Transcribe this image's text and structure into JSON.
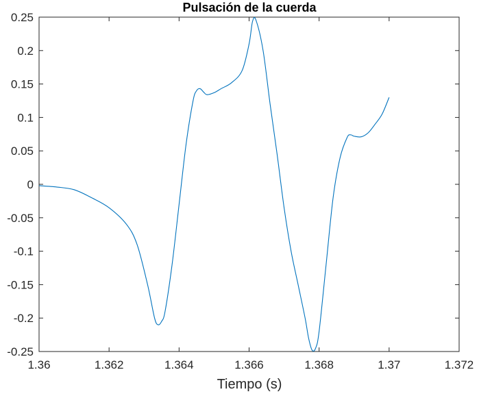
{
  "chart_data": {
    "type": "line",
    "title": "Pulsación de la cuerda",
    "xlabel": "Tiempo (s)",
    "ylabel": "",
    "xlim": [
      1.36,
      1.372
    ],
    "ylim": [
      -0.25,
      0.25
    ],
    "x_ticks": [
      "1.36",
      "1.362",
      "1.364",
      "1.366",
      "1.368",
      "1.37",
      "1.372"
    ],
    "y_ticks": [
      "-0.25",
      "-0.2",
      "-0.15",
      "-0.1",
      "-0.05",
      "0",
      "0.05",
      "0.1",
      "0.15",
      "0.2",
      "0.25"
    ],
    "grid": false,
    "line_color": "#0072BD",
    "series": [
      {
        "x": [
          1.36,
          1.3605,
          1.361,
          1.3615,
          1.362,
          1.3625,
          1.3628,
          1.3631,
          1.3633,
          1.3634,
          1.3635,
          1.3636,
          1.3638,
          1.364,
          1.3642,
          1.3644,
          1.3645,
          1.3646,
          1.3647,
          1.3648,
          1.365,
          1.3652,
          1.3655,
          1.3658,
          1.366,
          1.3661,
          1.3662,
          1.3664,
          1.3666,
          1.3668,
          1.367,
          1.3672,
          1.3674,
          1.3676,
          1.3677,
          1.3678,
          1.3679,
          1.368,
          1.3682,
          1.3684,
          1.3686,
          1.3688,
          1.3689,
          1.369,
          1.3692,
          1.3694,
          1.3696,
          1.3698,
          1.37
        ],
        "y": [
          -0.002,
          -0.004,
          -0.008,
          -0.02,
          -0.035,
          -0.06,
          -0.09,
          -0.15,
          -0.2,
          -0.21,
          -0.205,
          -0.19,
          -0.12,
          -0.03,
          0.06,
          0.125,
          0.14,
          0.143,
          0.138,
          0.134,
          0.137,
          0.143,
          0.152,
          0.17,
          0.21,
          0.244,
          0.245,
          0.2,
          0.12,
          0.045,
          -0.035,
          -0.1,
          -0.15,
          -0.2,
          -0.23,
          -0.248,
          -0.245,
          -0.22,
          -0.12,
          -0.02,
          0.04,
          0.07,
          0.074,
          0.072,
          0.071,
          0.077,
          0.09,
          0.105,
          0.13
        ]
      }
    ]
  }
}
